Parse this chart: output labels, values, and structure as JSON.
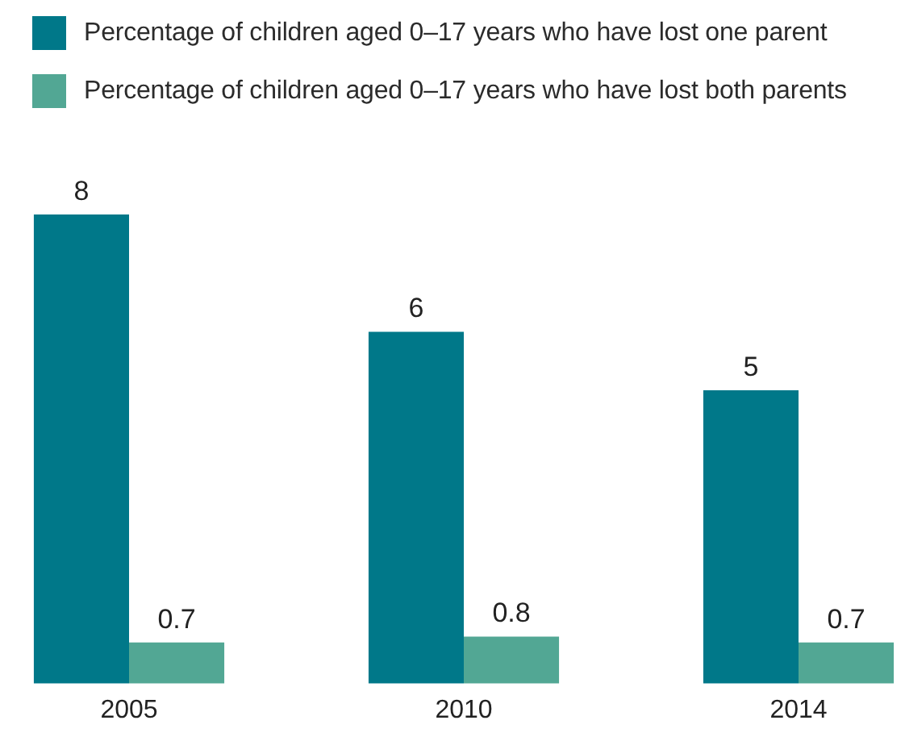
{
  "chart_data": {
    "type": "bar",
    "categories": [
      "2005",
      "2010",
      "2014"
    ],
    "series": [
      {
        "name": "Percentage of children aged 0–17 years who have lost one parent",
        "color": "#007889",
        "values": [
          8,
          6,
          5
        ]
      },
      {
        "name": "Percentage of children aged 0–17 years who have lost both parents",
        "color": "#52a794",
        "values": [
          0.7,
          0.8,
          0.7
        ]
      }
    ],
    "data_labels": true,
    "legend": "top left",
    "grid": false,
    "tick_labels": "x"
  }
}
